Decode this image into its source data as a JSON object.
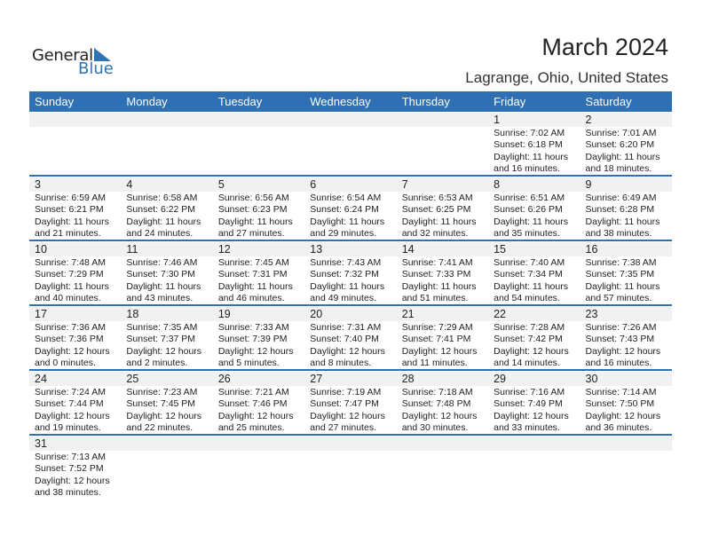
{
  "logo": {
    "general": "General",
    "blue": "Blue"
  },
  "header": {
    "title": "March 2024",
    "location": "Lagrange, Ohio, United States"
  },
  "colors": {
    "accent": "#2e70b3",
    "band": "#f1f1f1"
  },
  "weekdays": [
    "Sunday",
    "Monday",
    "Tuesday",
    "Wednesday",
    "Thursday",
    "Friday",
    "Saturday"
  ],
  "weeks": [
    [
      null,
      null,
      null,
      null,
      null,
      {
        "day": "1",
        "sunrise": "Sunrise: 7:02 AM",
        "sunset": "Sunset: 6:18 PM",
        "daylight1": "Daylight: 11 hours",
        "daylight2": "and 16 minutes."
      },
      {
        "day": "2",
        "sunrise": "Sunrise: 7:01 AM",
        "sunset": "Sunset: 6:20 PM",
        "daylight1": "Daylight: 11 hours",
        "daylight2": "and 18 minutes."
      }
    ],
    [
      {
        "day": "3",
        "sunrise": "Sunrise: 6:59 AM",
        "sunset": "Sunset: 6:21 PM",
        "daylight1": "Daylight: 11 hours",
        "daylight2": "and 21 minutes."
      },
      {
        "day": "4",
        "sunrise": "Sunrise: 6:58 AM",
        "sunset": "Sunset: 6:22 PM",
        "daylight1": "Daylight: 11 hours",
        "daylight2": "and 24 minutes."
      },
      {
        "day": "5",
        "sunrise": "Sunrise: 6:56 AM",
        "sunset": "Sunset: 6:23 PM",
        "daylight1": "Daylight: 11 hours",
        "daylight2": "and 27 minutes."
      },
      {
        "day": "6",
        "sunrise": "Sunrise: 6:54 AM",
        "sunset": "Sunset: 6:24 PM",
        "daylight1": "Daylight: 11 hours",
        "daylight2": "and 29 minutes."
      },
      {
        "day": "7",
        "sunrise": "Sunrise: 6:53 AM",
        "sunset": "Sunset: 6:25 PM",
        "daylight1": "Daylight: 11 hours",
        "daylight2": "and 32 minutes."
      },
      {
        "day": "8",
        "sunrise": "Sunrise: 6:51 AM",
        "sunset": "Sunset: 6:26 PM",
        "daylight1": "Daylight: 11 hours",
        "daylight2": "and 35 minutes."
      },
      {
        "day": "9",
        "sunrise": "Sunrise: 6:49 AM",
        "sunset": "Sunset: 6:28 PM",
        "daylight1": "Daylight: 11 hours",
        "daylight2": "and 38 minutes."
      }
    ],
    [
      {
        "day": "10",
        "sunrise": "Sunrise: 7:48 AM",
        "sunset": "Sunset: 7:29 PM",
        "daylight1": "Daylight: 11 hours",
        "daylight2": "and 40 minutes."
      },
      {
        "day": "11",
        "sunrise": "Sunrise: 7:46 AM",
        "sunset": "Sunset: 7:30 PM",
        "daylight1": "Daylight: 11 hours",
        "daylight2": "and 43 minutes."
      },
      {
        "day": "12",
        "sunrise": "Sunrise: 7:45 AM",
        "sunset": "Sunset: 7:31 PM",
        "daylight1": "Daylight: 11 hours",
        "daylight2": "and 46 minutes."
      },
      {
        "day": "13",
        "sunrise": "Sunrise: 7:43 AM",
        "sunset": "Sunset: 7:32 PM",
        "daylight1": "Daylight: 11 hours",
        "daylight2": "and 49 minutes."
      },
      {
        "day": "14",
        "sunrise": "Sunrise: 7:41 AM",
        "sunset": "Sunset: 7:33 PM",
        "daylight1": "Daylight: 11 hours",
        "daylight2": "and 51 minutes."
      },
      {
        "day": "15",
        "sunrise": "Sunrise: 7:40 AM",
        "sunset": "Sunset: 7:34 PM",
        "daylight1": "Daylight: 11 hours",
        "daylight2": "and 54 minutes."
      },
      {
        "day": "16",
        "sunrise": "Sunrise: 7:38 AM",
        "sunset": "Sunset: 7:35 PM",
        "daylight1": "Daylight: 11 hours",
        "daylight2": "and 57 minutes."
      }
    ],
    [
      {
        "day": "17",
        "sunrise": "Sunrise: 7:36 AM",
        "sunset": "Sunset: 7:36 PM",
        "daylight1": "Daylight: 12 hours",
        "daylight2": "and 0 minutes."
      },
      {
        "day": "18",
        "sunrise": "Sunrise: 7:35 AM",
        "sunset": "Sunset: 7:37 PM",
        "daylight1": "Daylight: 12 hours",
        "daylight2": "and 2 minutes."
      },
      {
        "day": "19",
        "sunrise": "Sunrise: 7:33 AM",
        "sunset": "Sunset: 7:39 PM",
        "daylight1": "Daylight: 12 hours",
        "daylight2": "and 5 minutes."
      },
      {
        "day": "20",
        "sunrise": "Sunrise: 7:31 AM",
        "sunset": "Sunset: 7:40 PM",
        "daylight1": "Daylight: 12 hours",
        "daylight2": "and 8 minutes."
      },
      {
        "day": "21",
        "sunrise": "Sunrise: 7:29 AM",
        "sunset": "Sunset: 7:41 PM",
        "daylight1": "Daylight: 12 hours",
        "daylight2": "and 11 minutes."
      },
      {
        "day": "22",
        "sunrise": "Sunrise: 7:28 AM",
        "sunset": "Sunset: 7:42 PM",
        "daylight1": "Daylight: 12 hours",
        "daylight2": "and 14 minutes."
      },
      {
        "day": "23",
        "sunrise": "Sunrise: 7:26 AM",
        "sunset": "Sunset: 7:43 PM",
        "daylight1": "Daylight: 12 hours",
        "daylight2": "and 16 minutes."
      }
    ],
    [
      {
        "day": "24",
        "sunrise": "Sunrise: 7:24 AM",
        "sunset": "Sunset: 7:44 PM",
        "daylight1": "Daylight: 12 hours",
        "daylight2": "and 19 minutes."
      },
      {
        "day": "25",
        "sunrise": "Sunrise: 7:23 AM",
        "sunset": "Sunset: 7:45 PM",
        "daylight1": "Daylight: 12 hours",
        "daylight2": "and 22 minutes."
      },
      {
        "day": "26",
        "sunrise": "Sunrise: 7:21 AM",
        "sunset": "Sunset: 7:46 PM",
        "daylight1": "Daylight: 12 hours",
        "daylight2": "and 25 minutes."
      },
      {
        "day": "27",
        "sunrise": "Sunrise: 7:19 AM",
        "sunset": "Sunset: 7:47 PM",
        "daylight1": "Daylight: 12 hours",
        "daylight2": "and 27 minutes."
      },
      {
        "day": "28",
        "sunrise": "Sunrise: 7:18 AM",
        "sunset": "Sunset: 7:48 PM",
        "daylight1": "Daylight: 12 hours",
        "daylight2": "and 30 minutes."
      },
      {
        "day": "29",
        "sunrise": "Sunrise: 7:16 AM",
        "sunset": "Sunset: 7:49 PM",
        "daylight1": "Daylight: 12 hours",
        "daylight2": "and 33 minutes."
      },
      {
        "day": "30",
        "sunrise": "Sunrise: 7:14 AM",
        "sunset": "Sunset: 7:50 PM",
        "daylight1": "Daylight: 12 hours",
        "daylight2": "and 36 minutes."
      }
    ],
    [
      {
        "day": "31",
        "sunrise": "Sunrise: 7:13 AM",
        "sunset": "Sunset: 7:52 PM",
        "daylight1": "Daylight: 12 hours",
        "daylight2": "and 38 minutes."
      }
    ]
  ]
}
